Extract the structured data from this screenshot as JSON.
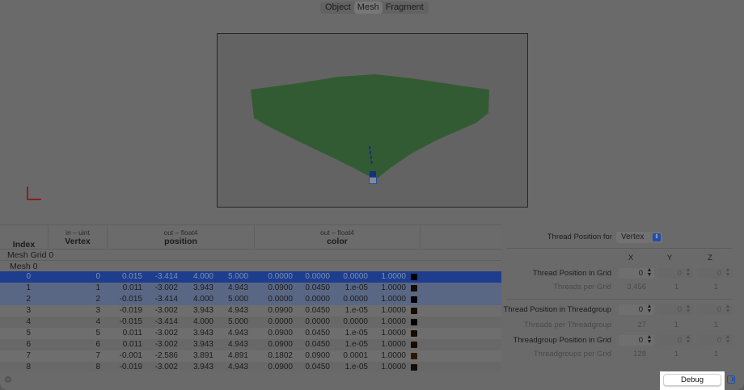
{
  "tabs": [
    {
      "label": "Object"
    },
    {
      "label": "Mesh",
      "selected": true
    },
    {
      "label": "Fragment"
    }
  ],
  "table": {
    "columns": [
      {
        "sub": "",
        "main": "Index"
      },
      {
        "sub": "in – uint",
        "main": "Vertex"
      },
      {
        "sub": "out – float4",
        "main": "position"
      },
      {
        "sub": "out – float4",
        "main": "color"
      }
    ],
    "group": "Mesh Grid 0",
    "subgroup": "Mesh 0",
    "rows": [
      {
        "index": "0",
        "vertex": "0",
        "position": [
          "0.015",
          "-3.414",
          "4.000",
          "5.000"
        ],
        "color": [
          "0.0000",
          "0.0000",
          "0.0000",
          "1.0000"
        ],
        "swatch": "#000000"
      },
      {
        "index": "1",
        "vertex": "1",
        "position": [
          "0.011",
          "-3.002",
          "3.943",
          "4.943"
        ],
        "color": [
          "0.0900",
          "0.0450",
          "1.e-05",
          "1.0000"
        ],
        "swatch": "#170b00"
      },
      {
        "index": "2",
        "vertex": "2",
        "position": [
          "-0.015",
          "-3.414",
          "4.000",
          "5.000"
        ],
        "color": [
          "0.0000",
          "0.0000",
          "0.0000",
          "1.0000"
        ],
        "swatch": "#000000"
      },
      {
        "index": "3",
        "vertex": "3",
        "position": [
          "-0.019",
          "-3.002",
          "3.943",
          "4.943"
        ],
        "color": [
          "0.0900",
          "0.0450",
          "1.e-05",
          "1.0000"
        ],
        "swatch": "#170b00"
      },
      {
        "index": "4",
        "vertex": "4",
        "position": [
          "-0.015",
          "-3.414",
          "4.000",
          "5.000"
        ],
        "color": [
          "0.0000",
          "0.0000",
          "0.0000",
          "1.0000"
        ],
        "swatch": "#000000"
      },
      {
        "index": "5",
        "vertex": "5",
        "position": [
          "0.011",
          "-3.002",
          "3.943",
          "4.943"
        ],
        "color": [
          "0.0900",
          "0.0450",
          "1.e-05",
          "1.0000"
        ],
        "swatch": "#170b00"
      },
      {
        "index": "6",
        "vertex": "6",
        "position": [
          "0.011",
          "-3.002",
          "3.943",
          "4.943"
        ],
        "color": [
          "0.0900",
          "0.0450",
          "1.e-05",
          "1.0000"
        ],
        "swatch": "#170b00"
      },
      {
        "index": "7",
        "vertex": "7",
        "position": [
          "-0.001",
          "-2.586",
          "3.891",
          "4.891"
        ],
        "color": [
          "0.1802",
          "0.0900",
          "0.0001",
          "1.0000"
        ],
        "swatch": "#2e1700"
      },
      {
        "index": "8",
        "vertex": "8",
        "position": [
          "-0.019",
          "-3.002",
          "3.943",
          "4.943"
        ],
        "color": [
          "0.0900",
          "0.0450",
          "1.e-05",
          "1.0000"
        ],
        "swatch": "#170b00"
      }
    ]
  },
  "panel": {
    "thread_position_for_label": "Thread Position for",
    "thread_position_for_value": "Vertex",
    "axes": [
      "X",
      "Y",
      "Z"
    ],
    "thread_pos_grid": {
      "label": "Thread Position in Grid",
      "values": [
        "0",
        "0",
        "0"
      ]
    },
    "threads_per_grid": {
      "label": "Threads per Grid",
      "values": [
        "3,456",
        "1",
        "1"
      ]
    },
    "thread_pos_tg": {
      "label": "Thread Position in Threadgroup",
      "values": [
        "0",
        "0",
        "0"
      ]
    },
    "threads_per_tg": {
      "label": "Threads per Threadgroup",
      "values": [
        "27",
        "1",
        "1"
      ]
    },
    "tg_pos_grid": {
      "label": "Threadgroup Position in Grid",
      "values": [
        "0",
        "0",
        "0"
      ]
    },
    "tg_per_grid": {
      "label": "Threadgroups per Grid",
      "values": [
        "128",
        "1",
        "1"
      ]
    }
  },
  "debug_label": "Debug",
  "colors": {
    "selection": "#1e3d8c",
    "secondary_selection": "#5a6784",
    "mesh": "#335b33",
    "accent": "#1f4fa8"
  }
}
